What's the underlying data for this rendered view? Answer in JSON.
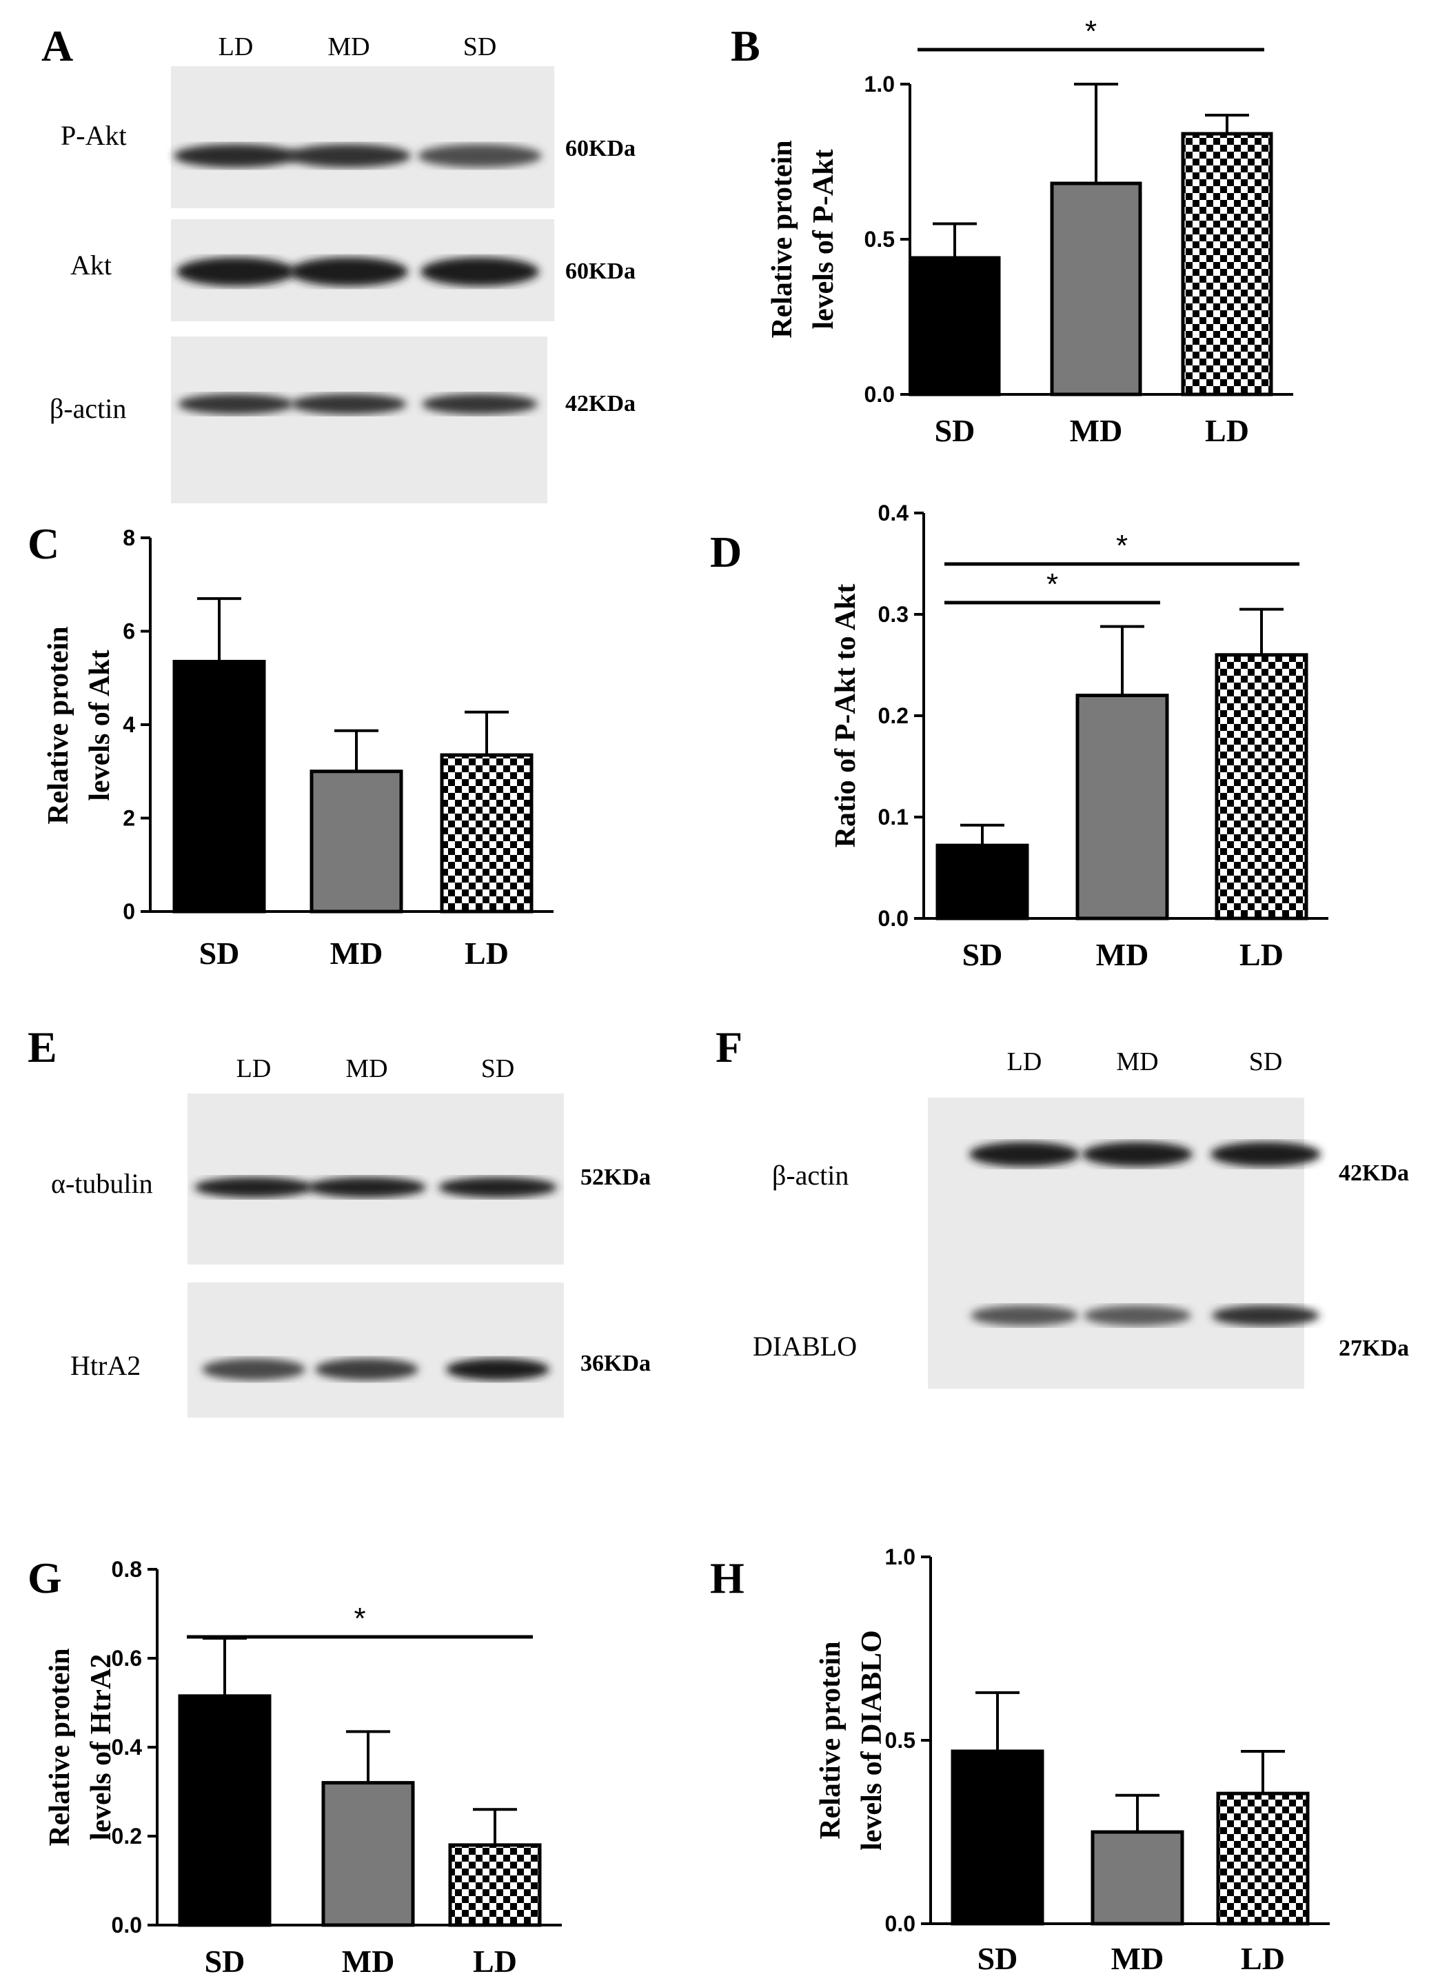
{
  "colors": {
    "sd": "#000000",
    "md": "#7a7a7a",
    "blot_bg": "#eaeaea",
    "band": "#1c1c1c"
  },
  "panels": [
    {
      "letter": "A",
      "lanes": [
        "LD",
        "MD",
        "SD"
      ],
      "rows": [
        {
          "protein": "P-Akt",
          "kda": "60KDa",
          "intensity": [
            0.9,
            0.85,
            0.6
          ]
        },
        {
          "protein": "Akt",
          "kda": "60KDa",
          "intensity": [
            1,
            1,
            1
          ]
        },
        {
          "protein": "β-actin",
          "kda": "42KDa",
          "intensity": [
            0.8,
            0.8,
            0.8
          ]
        }
      ]
    },
    {
      "letter": "E",
      "lanes": [
        "LD",
        "MD",
        "SD"
      ],
      "rows": [
        {
          "protein": "α-tubulin",
          "kda": "52KDa",
          "intensity": [
            0.95,
            0.95,
            0.95
          ]
        },
        {
          "protein": "HtrA2",
          "kda": "36KDa",
          "intensity": [
            0.65,
            0.75,
            1
          ]
        }
      ]
    },
    {
      "letter": "F",
      "lanes": [
        "LD",
        "MD",
        "SD"
      ],
      "rows": [
        {
          "protein": "β-actin",
          "kda": "42KDa",
          "intensity": [
            1,
            1,
            1
          ]
        },
        {
          "protein": "DIABLO",
          "kda": "27KDa",
          "intensity": [
            0.55,
            0.5,
            0.85
          ]
        }
      ]
    }
  ],
  "chart_data": [
    {
      "type": "bar",
      "letter": "B",
      "categories": [
        "SD",
        "MD",
        "LD"
      ],
      "values": [
        0.44,
        0.68,
        0.84
      ],
      "errors": [
        0.11,
        0.32,
        0.06
      ],
      "ylabel": [
        "Relative protein",
        "levels of P-Akt"
      ],
      "ylim": [
        0,
        1.0
      ],
      "ticks": [
        "0.0",
        "0.5",
        "1.0"
      ],
      "significance": [
        {
          "from": 0,
          "to": 2,
          "label": "*"
        }
      ]
    },
    {
      "type": "bar",
      "letter": "C",
      "categories": [
        "SD",
        "MD",
        "LD"
      ],
      "values": [
        5.35,
        3.0,
        3.35
      ],
      "errors": [
        1.35,
        0.87,
        0.92
      ],
      "ylabel": [
        "Relative protein",
        "levels of Akt"
      ],
      "ylim": [
        0,
        8
      ],
      "ticks": [
        "0",
        "2",
        "4",
        "6",
        "8"
      ],
      "significance": []
    },
    {
      "type": "bar",
      "letter": "D",
      "categories": [
        "SD",
        "MD",
        "LD"
      ],
      "values": [
        0.072,
        0.22,
        0.26
      ],
      "errors": [
        0.02,
        0.068,
        0.045
      ],
      "ylabel": [
        "Ratio of P-Akt to Akt"
      ],
      "ylim": [
        0,
        0.4
      ],
      "ticks": [
        "0.0",
        "0.1",
        "0.2",
        "0.3",
        "0.4"
      ],
      "significance": [
        {
          "from": 0,
          "to": 1,
          "label": "*"
        },
        {
          "from": 0,
          "to": 2,
          "label": "*"
        }
      ]
    },
    {
      "type": "bar",
      "letter": "G",
      "categories": [
        "SD",
        "MD",
        "LD"
      ],
      "values": [
        0.515,
        0.32,
        0.18
      ],
      "errors": [
        0.13,
        0.115,
        0.08
      ],
      "ylabel": [
        "Relative protein",
        "levels of HtrA2"
      ],
      "ylim": [
        0,
        0.8
      ],
      "ticks": [
        "0.0",
        "0.2",
        "0.4",
        "0.6",
        "0.8"
      ],
      "significance": [
        {
          "from": 0,
          "to": 2,
          "label": "*"
        }
      ]
    },
    {
      "type": "bar",
      "letter": "H",
      "categories": [
        "SD",
        "MD",
        "LD"
      ],
      "values": [
        0.47,
        0.25,
        0.355
      ],
      "errors": [
        0.16,
        0.1,
        0.115
      ],
      "ylabel": [
        "Relative protein",
        "levels of DIABLO"
      ],
      "ylim": [
        0,
        1.0
      ],
      "ticks": [
        "0.0",
        "0.5",
        "1.0"
      ],
      "significance": []
    }
  ]
}
